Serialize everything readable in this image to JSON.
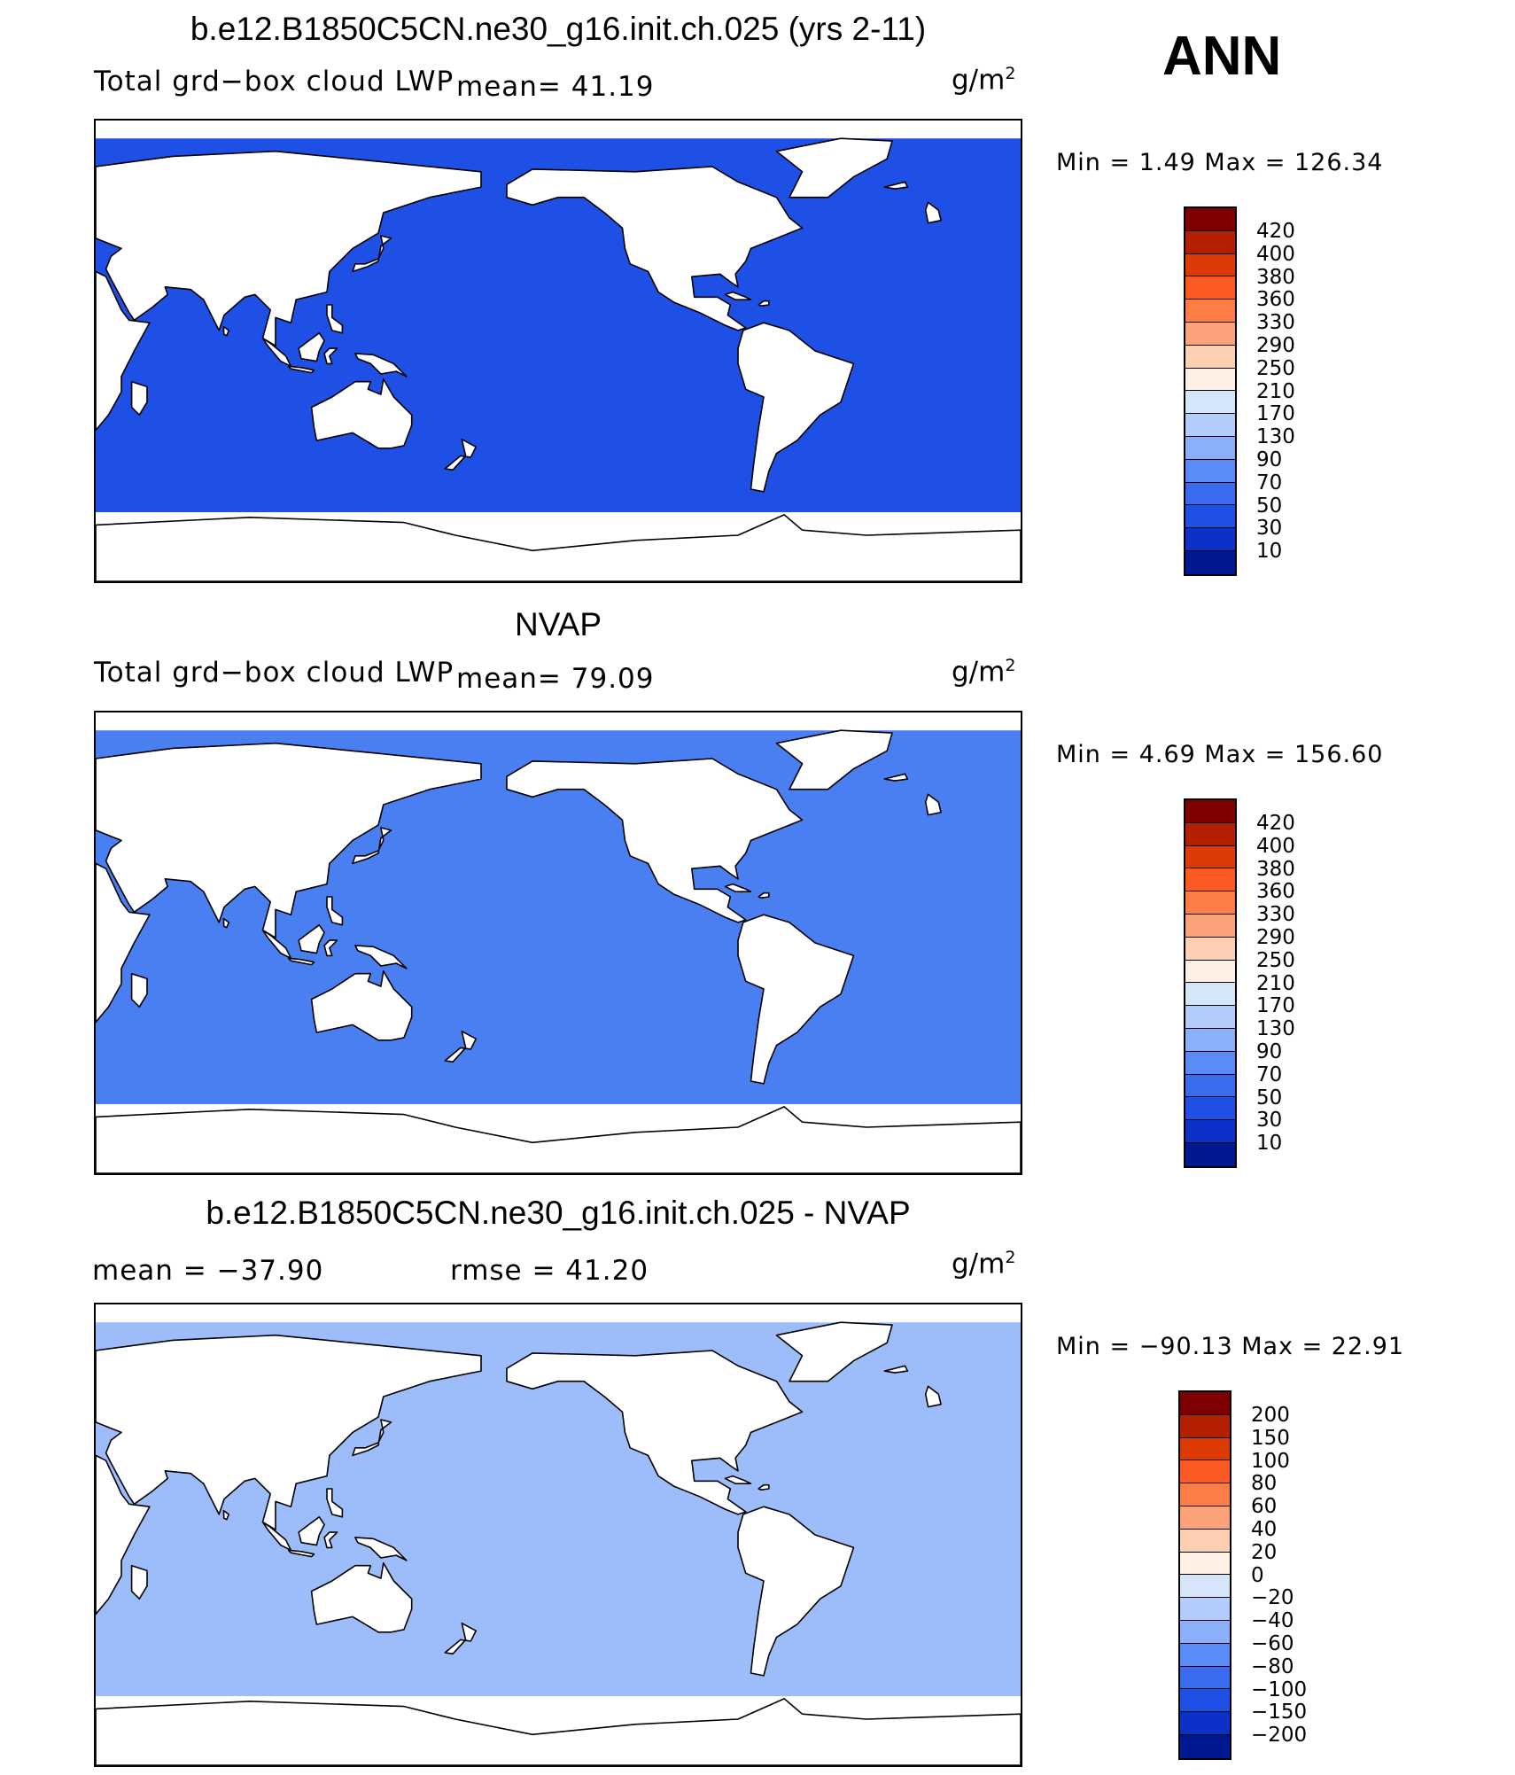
{
  "season": "ANN",
  "units_base": "g/m",
  "units_exp": "2",
  "panels": [
    {
      "title": "b.e12.B1850C5CN.ne30_g16.init.ch.025 (yrs 2-11)",
      "field_label": "Total grd−box cloud LWP",
      "stat1": "mean=   41.19",
      "stat2": "",
      "minmax": "Min =     1.49 Max =  126.34",
      "ocean_color": "#1e50e6",
      "legend": {
        "labels": [
          "420",
          "400",
          "380",
          "360",
          "330",
          "290",
          "250",
          "210",
          "170",
          "130",
          "90",
          "70",
          "50",
          "30",
          "10"
        ],
        "colors": [
          "#7f0000",
          "#b22000",
          "#dd3a05",
          "#fb5a22",
          "#fc7e46",
          "#fca27a",
          "#fdd0b4",
          "#fff0e6",
          "#d6e6fa",
          "#b4ccfb",
          "#8ab0f9",
          "#5a8bf6",
          "#3a6cf2",
          "#1e50e6",
          "#0c30c8",
          "#001890"
        ]
      }
    },
    {
      "title": "NVAP",
      "field_label": "Total grd−box cloud LWP",
      "stat1": "mean=   79.09",
      "stat2": "",
      "minmax": "Min =     4.69 Max =  156.60",
      "ocean_color": "#4a7ff2",
      "legend": {
        "labels": [
          "420",
          "400",
          "380",
          "360",
          "330",
          "290",
          "250",
          "210",
          "170",
          "130",
          "90",
          "70",
          "50",
          "30",
          "10"
        ],
        "colors": [
          "#7f0000",
          "#b22000",
          "#dd3a05",
          "#fb5a22",
          "#fc7e46",
          "#fca27a",
          "#fdd0b4",
          "#fff0e6",
          "#d6e6fa",
          "#b4ccfb",
          "#8ab0f9",
          "#5a8bf6",
          "#3a6cf2",
          "#1e50e6",
          "#0c30c8",
          "#001890"
        ]
      }
    },
    {
      "title": "b.e12.B1850C5CN.ne30_g16.init.ch.025 - NVAP",
      "field_label": "",
      "stat1": "mean = −37.90",
      "stat2": "rmse =   41.20",
      "minmax": "Min = −90.13 Max =   22.91",
      "ocean_color": "#9dbdfa",
      "legend": {
        "labels": [
          "200",
          "150",
          "100",
          "80",
          "60",
          "40",
          "20",
          "0",
          "−20",
          "−40",
          "−60",
          "−80",
          "−100",
          "−150",
          "−200"
        ],
        "colors": [
          "#7f0000",
          "#b22000",
          "#dd3a05",
          "#fb5a22",
          "#fc7e46",
          "#fca27a",
          "#fdd0b4",
          "#fff0e6",
          "#d6e6fa",
          "#b4ccfb",
          "#8ab0f9",
          "#5a8bf6",
          "#3a6cf2",
          "#1e50e6",
          "#0c30c8",
          "#001890"
        ]
      }
    }
  ]
}
